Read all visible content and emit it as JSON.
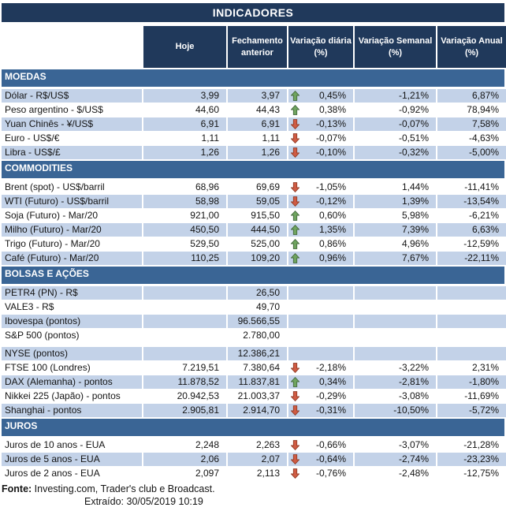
{
  "title": "INDICADORES",
  "columns": [
    "Hoje",
    "Fechamento\nanterior",
    "Variação diária\n(%)",
    "Variação Semanal\n(%)",
    "Variação Anual\n(%)"
  ],
  "colors": {
    "navy": "#20395b",
    "section_blue": "#3a6595",
    "row_shaded": "#c3d2e8",
    "arrow_up_fill": "#6fa45f",
    "arrow_up_stroke": "#41663a",
    "arrow_down_fill": "#cf5b43",
    "arrow_down_stroke": "#8f3a24"
  },
  "sections": [
    {
      "name": "MOEDAS",
      "start_shaded": true,
      "rows": [
        {
          "label": "Dólar - R$/US$",
          "hoje": "3,99",
          "fechamento": "3,97",
          "arrow": "up",
          "diaria": "0,45%",
          "semanal": "-1,21%",
          "anual": "6,87%"
        },
        {
          "label": "Peso argentino - $/US$",
          "hoje": "44,60",
          "fechamento": "44,43",
          "arrow": "up",
          "diaria": "0,38%",
          "semanal": "-0,92%",
          "anual": "78,94%"
        },
        {
          "label": "Yuan Chinês - ¥/US$",
          "hoje": "6,91",
          "fechamento": "6,91",
          "arrow": "down",
          "diaria": "-0,13%",
          "semanal": "-0,07%",
          "anual": "7,58%"
        },
        {
          "label": "Euro - US$/€",
          "hoje": "1,11",
          "fechamento": "1,11",
          "arrow": "down",
          "diaria": "-0,07%",
          "semanal": "-0,51%",
          "anual": "-4,63%"
        },
        {
          "label": "Libra - US$/£",
          "hoje": "1,26",
          "fechamento": "1,26",
          "arrow": "down",
          "diaria": "-0,10%",
          "semanal": "-0,32%",
          "anual": "-5,00%"
        }
      ]
    },
    {
      "name": "COMMODITIES",
      "start_shaded": false,
      "rows": [
        {
          "label": "Brent (spot) - US$/barril",
          "hoje": "68,96",
          "fechamento": "69,69",
          "arrow": "down",
          "diaria": "-1,05%",
          "semanal": "1,44%",
          "anual": "-11,41%"
        },
        {
          "label": "WTI (Futuro) - US$/barril",
          "hoje": "58,98",
          "fechamento": "59,05",
          "arrow": "down",
          "diaria": "-0,12%",
          "semanal": "1,39%",
          "anual": "-13,54%"
        },
        {
          "label": "Soja (Futuro) - Mar/20",
          "hoje": "921,00",
          "fechamento": "915,50",
          "arrow": "up",
          "diaria": "0,60%",
          "semanal": "5,98%",
          "anual": "-6,21%"
        },
        {
          "label": "Milho (Futuro) - Mar/20",
          "hoje": "450,50",
          "fechamento": "444,50",
          "arrow": "up",
          "diaria": "1,35%",
          "semanal": "7,39%",
          "anual": "6,63%"
        },
        {
          "label": "Trigo (Futuro) - Mar/20",
          "hoje": "529,50",
          "fechamento": "525,00",
          "arrow": "up",
          "diaria": "0,86%",
          "semanal": "4,96%",
          "anual": "-12,59%"
        },
        {
          "label": "Café (Futuro) - Mar/20",
          "hoje": "110,25",
          "fechamento": "109,20",
          "arrow": "up",
          "diaria": "0,96%",
          "semanal": "7,67%",
          "anual": "-22,11%"
        }
      ]
    },
    {
      "name": "BOLSAS E AÇÕES",
      "start_shaded": true,
      "rows": [
        {
          "label": "PETR4 (PN) - R$",
          "hoje": "",
          "fechamento": "26,50",
          "arrow": "",
          "diaria": "",
          "semanal": "",
          "anual": ""
        },
        {
          "label": "VALE3 - R$",
          "hoje": "",
          "fechamento": "49,70",
          "arrow": "",
          "diaria": "",
          "semanal": "",
          "anual": ""
        },
        {
          "label": "Ibovespa (pontos)",
          "hoje": "",
          "fechamento": "96.566,55",
          "arrow": "",
          "diaria": "",
          "semanal": "",
          "anual": ""
        },
        {
          "label": "S&P 500 (pontos)",
          "hoje": "",
          "fechamento": "2.780,00",
          "arrow": "",
          "diaria": "",
          "semanal": "",
          "anual": ""
        },
        {
          "spacer": true
        },
        {
          "label": "NYSE (pontos)",
          "hoje": "",
          "fechamento": "12.386,21",
          "arrow": "",
          "diaria": "",
          "semanal": "",
          "anual": ""
        },
        {
          "label": "FTSE 100 (Londres)",
          "hoje": "7.219,51",
          "fechamento": "7.380,64",
          "arrow": "down",
          "diaria": "-2,18%",
          "semanal": "-3,22%",
          "anual": "2,31%"
        },
        {
          "label": "DAX (Alemanha) - pontos",
          "hoje": "11.878,52",
          "fechamento": "11.837,81",
          "arrow": "up",
          "diaria": "0,34%",
          "semanal": "-2,81%",
          "anual": "-1,80%"
        },
        {
          "label": "Nikkei 225 (Japão) - pontos",
          "hoje": "20.942,53",
          "fechamento": "21.003,37",
          "arrow": "down",
          "diaria": "-0,29%",
          "semanal": "-3,08%",
          "anual": "-11,69%"
        },
        {
          "label": "Shanghai - pontos",
          "hoje": "2.905,81",
          "fechamento": "2.914,70",
          "arrow": "down",
          "diaria": "-0,31%",
          "semanal": "-10,50%",
          "anual": "-5,72%"
        }
      ]
    },
    {
      "name": "JUROS",
      "start_shaded": false,
      "rows": [
        {
          "label": "Juros de 10 anos - EUA",
          "hoje": "2,248",
          "fechamento": "2,263",
          "arrow": "down",
          "diaria": "-0,66%",
          "semanal": "-3,07%",
          "anual": "-21,28%"
        },
        {
          "label": "Juros de 5 anos - EUA",
          "hoje": "2,06",
          "fechamento": "2,07",
          "arrow": "down",
          "diaria": "-0,64%",
          "semanal": "-2,74%",
          "anual": "-23,23%"
        },
        {
          "label": "Juros de 2 anos - EUA",
          "hoje": "2,097",
          "fechamento": "2,113",
          "arrow": "down",
          "diaria": "-0,76%",
          "semanal": "-2,48%",
          "anual": "-12,75%"
        }
      ]
    }
  ],
  "footer": {
    "source_label": "Fonte:",
    "source_text": "Investing.com, Trader's club e Broadcast.",
    "extracted": "Extraído: 30/05/2019 10:19"
  }
}
